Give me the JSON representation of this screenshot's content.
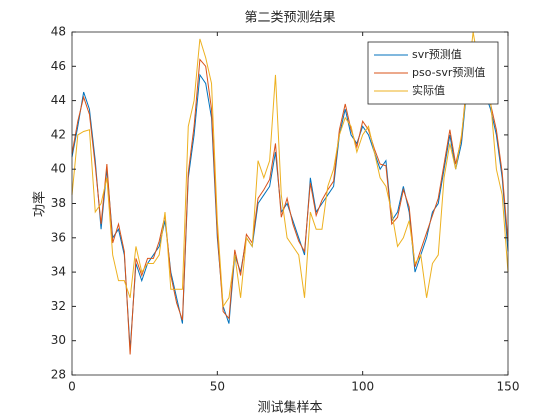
{
  "chart_data": {
    "type": "line",
    "title": "第二类预测结果",
    "xlabel": "测试集样本",
    "ylabel": "功率",
    "x": [
      0,
      2,
      4,
      6,
      8,
      10,
      12,
      14,
      16,
      18,
      20,
      22,
      24,
      26,
      28,
      30,
      32,
      34,
      36,
      38,
      40,
      42,
      44,
      46,
      48,
      50,
      52,
      54,
      56,
      58,
      60,
      62,
      64,
      66,
      68,
      70,
      72,
      74,
      76,
      78,
      80,
      82,
      84,
      86,
      88,
      90,
      92,
      94,
      96,
      98,
      100,
      102,
      104,
      106,
      108,
      110,
      112,
      114,
      116,
      118,
      120,
      122,
      124,
      126,
      128,
      130,
      132,
      134,
      136,
      138,
      140,
      142,
      144,
      146,
      148,
      150
    ],
    "series": [
      {
        "name": "svr预测值",
        "color": "#0072bd",
        "values": [
          40.7,
          42.5,
          44.5,
          43.5,
          40.5,
          36.5,
          40,
          36,
          36.5,
          35,
          29.5,
          34.5,
          33.5,
          34.5,
          35,
          35.5,
          37,
          34,
          32.5,
          31,
          39.5,
          42,
          45.5,
          45,
          43,
          36,
          32,
          31,
          35,
          34,
          36,
          35.5,
          38,
          38.5,
          39,
          41,
          37.5,
          38,
          37,
          36,
          35,
          39.5,
          37.5,
          38,
          38.5,
          39,
          42,
          43.5,
          42,
          41.5,
          42.5,
          42,
          41,
          40,
          40.5,
          37,
          37.5,
          39,
          37.5,
          34,
          35,
          36,
          37.5,
          38,
          40,
          42,
          40,
          41.5,
          45,
          46,
          45,
          44.5,
          43.5,
          42,
          39.5,
          35.2
        ]
      },
      {
        "name": "pso-svr预测值",
        "color": "#d95319",
        "values": [
          40.9,
          42.8,
          44.2,
          43.2,
          40.2,
          36.8,
          40.3,
          35.7,
          36.8,
          35.2,
          29.2,
          34.8,
          33.8,
          34.8,
          34.8,
          35.8,
          37.3,
          33.8,
          32.2,
          31.2,
          39.8,
          42.5,
          46.4,
          46,
          43.5,
          36.3,
          31.7,
          31.3,
          35.3,
          33.8,
          36.2,
          35.7,
          38.3,
          38.8,
          39.4,
          41.5,
          37.2,
          38.3,
          36.8,
          35.8,
          35.2,
          39.2,
          37.3,
          38.2,
          38.8,
          39.3,
          42.3,
          43.8,
          42.3,
          41.3,
          42.8,
          42.3,
          41.2,
          40.3,
          40.2,
          36.8,
          37.2,
          38.8,
          37.8,
          34.3,
          35.3,
          36.3,
          37.3,
          38.3,
          40.3,
          42.3,
          40.3,
          41.8,
          45.5,
          46.5,
          45.3,
          44.8,
          43.8,
          42.3,
          39.8,
          35.8
        ]
      },
      {
        "name": "实际值",
        "color": "#edb120",
        "values": [
          38.5,
          42,
          42.2,
          42.3,
          37.5,
          38,
          39.5,
          35,
          33.5,
          33.5,
          32.5,
          35.5,
          34,
          34.5,
          34.5,
          35,
          37.5,
          33,
          33,
          33,
          42.5,
          44,
          47.6,
          46.5,
          45,
          37,
          32,
          32.5,
          35,
          32.5,
          36,
          35.5,
          40.5,
          39.5,
          40.5,
          45.5,
          38.5,
          36,
          35.5,
          35,
          32.5,
          37.5,
          36.5,
          36.5,
          39,
          40,
          42,
          43,
          42.5,
          41,
          42,
          42.5,
          41,
          39.5,
          39,
          37.5,
          35.5,
          36,
          37,
          34.5,
          35,
          32.5,
          34.5,
          35,
          39.5,
          41.5,
          40,
          42,
          45,
          48,
          46,
          45,
          44,
          40,
          38.5,
          34
        ]
      }
    ],
    "xlim": [
      0,
      150
    ],
    "xticks": [
      0,
      50,
      100,
      150
    ],
    "ylim": [
      28,
      48
    ],
    "yticks": [
      28,
      30,
      32,
      34,
      36,
      38,
      40,
      42,
      44,
      46,
      48
    ],
    "legend": "upper right"
  }
}
